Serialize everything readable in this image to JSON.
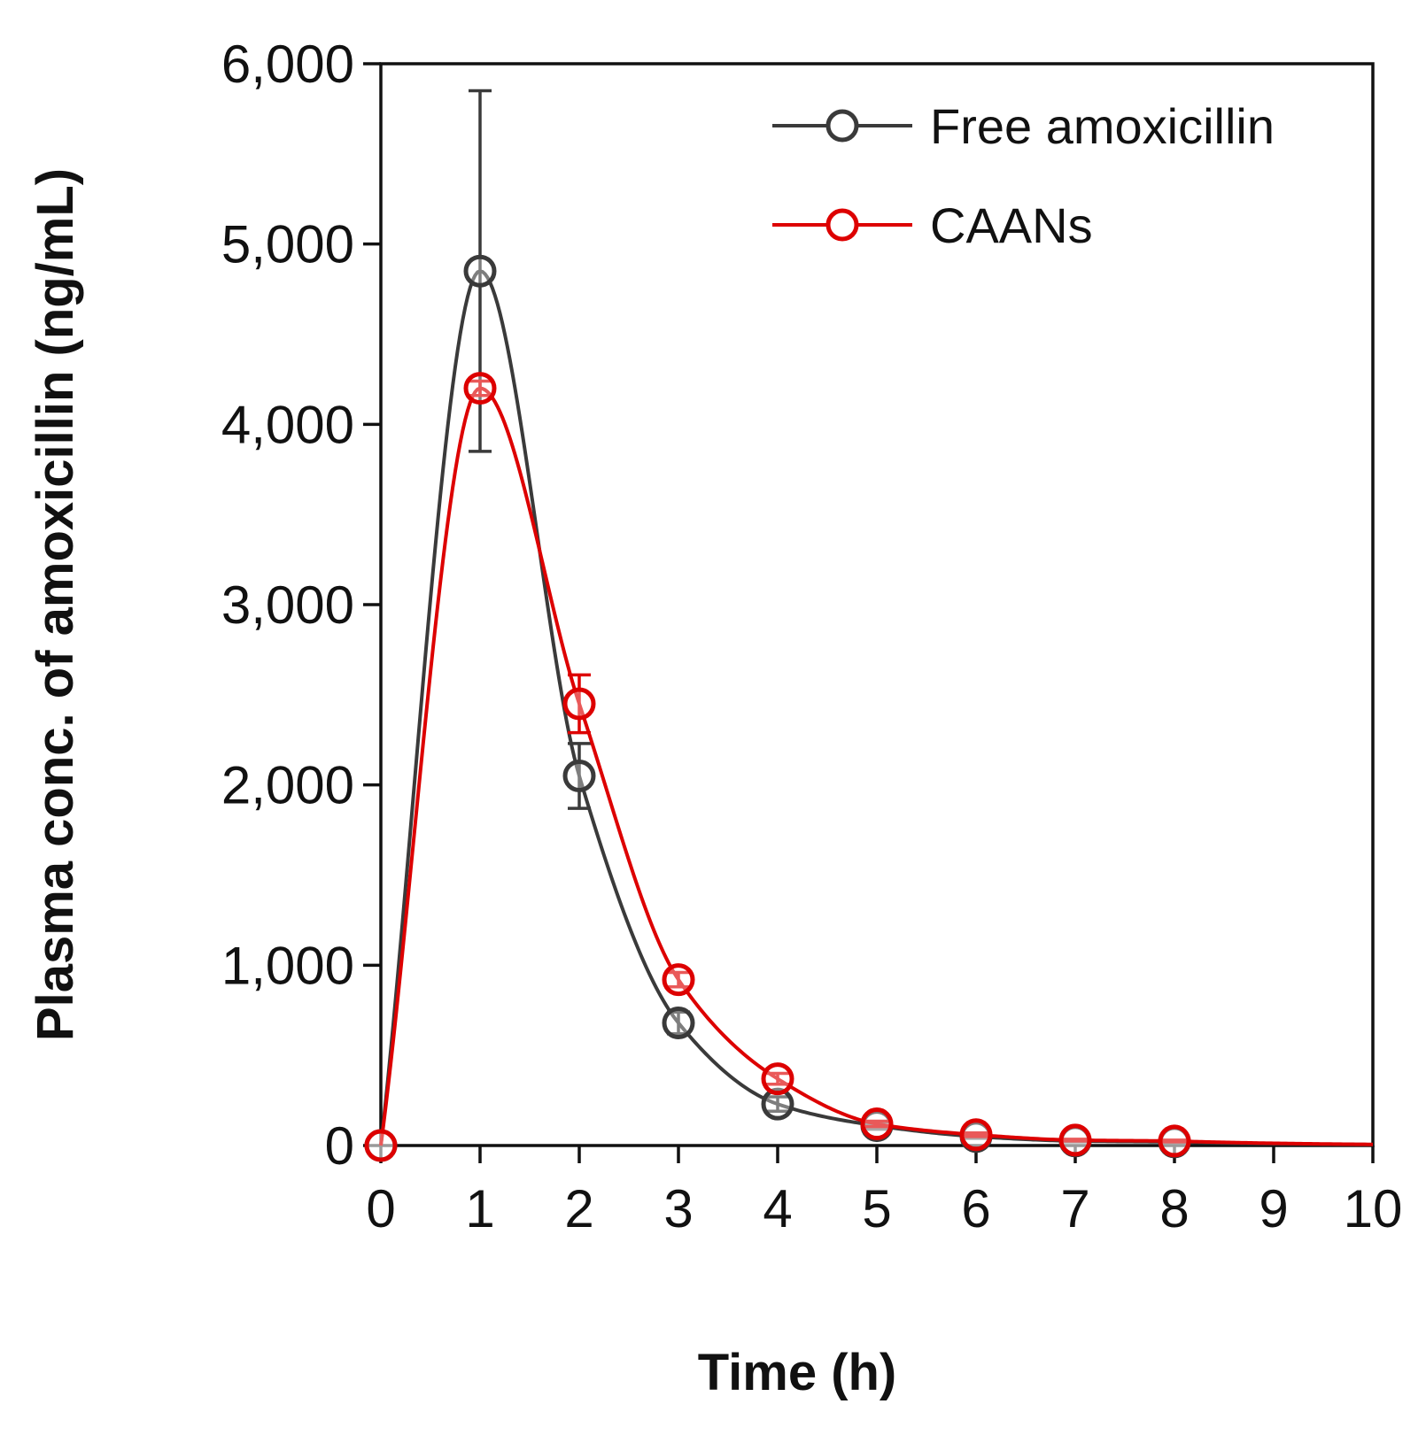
{
  "chart_data": {
    "type": "line",
    "title": "",
    "xlabel": "Time (h)",
    "ylabel": "Plasma conc. of amoxicillin (ng/mL)",
    "xlim": [
      0,
      10
    ],
    "ylim": [
      0,
      6000
    ],
    "xticks": [
      "0",
      "1",
      "2",
      "3",
      "4",
      "5",
      "6",
      "7",
      "8",
      "9",
      "10"
    ],
    "yticks": [
      "0",
      "1,000",
      "2,000",
      "3,000",
      "4,000",
      "5,000",
      "6,000"
    ],
    "grid": false,
    "legend_position": "top-right",
    "series": [
      {
        "name": "Free amoxicillin",
        "color": "#3a3a3a",
        "x": [
          0,
          1,
          2,
          3,
          4,
          5,
          6,
          7,
          8
        ],
        "y": [
          0,
          4850,
          2050,
          680,
          230,
          110,
          50,
          25,
          20
        ],
        "error": [
          0,
          1000,
          180,
          60,
          40,
          20,
          10,
          5,
          5
        ],
        "fit_curve": true
      },
      {
        "name": "CAANs",
        "color": "#dd0000",
        "x": [
          0,
          1,
          2,
          3,
          4,
          5,
          6,
          7,
          8
        ],
        "y": [
          0,
          4200,
          2450,
          920,
          370,
          120,
          60,
          30,
          25
        ],
        "error": [
          0,
          40,
          160,
          40,
          30,
          15,
          10,
          5,
          5
        ],
        "fit_curve": true
      }
    ]
  }
}
